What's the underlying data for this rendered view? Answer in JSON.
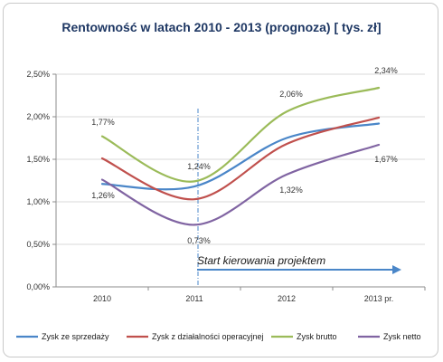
{
  "chart_data": {
    "type": "line",
    "title": "Rentowność w latach 2010 - 2013 (prognoza) [ tys. zł]",
    "categories": [
      "2010",
      "2011",
      "2012",
      "2013 pr."
    ],
    "ylim": [
      0,
      0.025
    ],
    "yticks": [
      "0,00%",
      "0,50%",
      "1,00%",
      "1,50%",
      "2,00%",
      "2,50%"
    ],
    "grid": true,
    "legend_position": "bottom",
    "series": [
      {
        "name": "Zysk ze sprzedaży",
        "color": "#4a86c8",
        "values": [
          0.0121,
          0.0118,
          0.0175,
          0.0192
        ]
      },
      {
        "name": "Zysk z działalności operacyjnej",
        "color": "#c0504d",
        "values": [
          0.0151,
          0.0103,
          0.0168,
          0.0199
        ]
      },
      {
        "name": "Zysk brutto",
        "color": "#9bbb59",
        "values": [
          0.0177,
          0.0124,
          0.0206,
          0.0234
        ]
      },
      {
        "name": "Zysk netto",
        "color": "#8064a2",
        "values": [
          0.0126,
          0.0073,
          0.0132,
          0.0167
        ]
      }
    ],
    "data_labels": [
      "1,77%",
      "1,26%",
      "1,24%",
      "0,73%",
      "2,06%",
      "1,32%",
      "2,34%",
      "1,67%"
    ],
    "annotation": "Start kierowania projektem",
    "annotation_color": "#4a86c8"
  }
}
